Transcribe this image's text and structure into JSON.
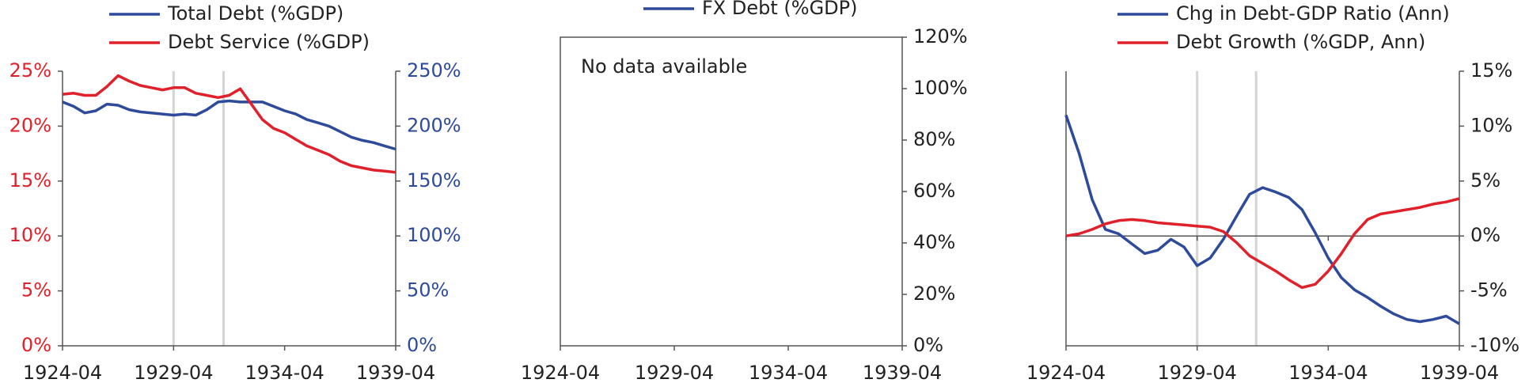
{
  "chart_data": [
    {
      "type": "line",
      "x": [
        "1924-04",
        "1924-10",
        "1925-04",
        "1925-10",
        "1926-04",
        "1926-10",
        "1927-04",
        "1927-10",
        "1928-04",
        "1928-10",
        "1929-04",
        "1929-10",
        "1930-04",
        "1930-10",
        "1931-04",
        "1931-10",
        "1932-04",
        "1932-10",
        "1933-04",
        "1933-10",
        "1934-04",
        "1934-10",
        "1935-04",
        "1935-10",
        "1936-04",
        "1936-10",
        "1937-04",
        "1937-10",
        "1938-04",
        "1938-10",
        "1939-04"
      ],
      "series": [
        {
          "name": "Total Debt (%GDP)",
          "color": "#2e4a9a",
          "axis": "y2",
          "values": [
            222,
            218,
            212,
            214,
            220,
            219,
            215,
            213,
            212,
            211,
            210,
            211,
            210,
            215,
            222,
            223,
            222,
            222,
            222,
            218,
            214,
            211,
            206,
            203,
            200,
            195,
            190,
            187,
            185,
            182,
            179
          ]
        },
        {
          "name": "Debt Service (%GDP)",
          "color": "#e0202a",
          "axis": "y",
          "values": [
            22.9,
            23.0,
            22.8,
            22.8,
            23.6,
            24.6,
            24.1,
            23.7,
            23.5,
            23.3,
            23.5,
            23.5,
            23.0,
            22.8,
            22.6,
            22.8,
            23.4,
            22.0,
            20.6,
            19.8,
            19.4,
            18.8,
            18.2,
            17.8,
            17.4,
            16.8,
            16.4,
            16.2,
            16.0,
            15.9,
            15.8
          ]
        }
      ],
      "xlim": [
        "1924-04",
        "1939-04"
      ],
      "xticks": [
        "1924-04",
        "1929-04",
        "1934-04",
        "1939-04"
      ],
      "ylim": [
        0,
        25
      ],
      "yticks": [
        {
          "value": 0,
          "label": "0%"
        },
        {
          "value": 5,
          "label": "5%"
        },
        {
          "value": 10,
          "label": "10%"
        },
        {
          "value": 15,
          "label": "15%"
        },
        {
          "value": 20,
          "label": "20%"
        },
        {
          "value": 25,
          "label": "25%"
        }
      ],
      "y2lim": [
        0,
        250
      ],
      "y2ticks": [
        {
          "value": 0,
          "label": "0%"
        },
        {
          "value": 50,
          "label": "50%"
        },
        {
          "value": 100,
          "label": "100%"
        },
        {
          "value": 150,
          "label": "150%"
        },
        {
          "value": 200,
          "label": "200%"
        },
        {
          "value": 250,
          "label": "250%"
        }
      ],
      "ytick_color": "#e0202a",
      "y2tick_color": "#2e4a9a",
      "vlines": [
        "1929-04",
        "1931-07"
      ],
      "vline_color": "#d4d4d4"
    },
    {
      "type": "line",
      "series": [
        {
          "name": "FX Debt (%GDP)",
          "color": "#2e4a9a",
          "axis": "y2"
        }
      ],
      "annotation": "No data available",
      "xlim": [
        "1924-04",
        "1939-04"
      ],
      "xticks": [
        "1924-04",
        "1929-04",
        "1934-04",
        "1939-04"
      ],
      "y2lim": [
        0,
        120
      ],
      "y2ticks": [
        {
          "value": 0,
          "label": "0%"
        },
        {
          "value": 20,
          "label": "20%"
        },
        {
          "value": 40,
          "label": "40%"
        },
        {
          "value": 60,
          "label": "60%"
        },
        {
          "value": 80,
          "label": "80%"
        },
        {
          "value": 100,
          "label": "100%"
        },
        {
          "value": 120,
          "label": "120%"
        }
      ],
      "y2tick_color": "#222222"
    },
    {
      "type": "line",
      "x": [
        "1924-04",
        "1924-10",
        "1925-04",
        "1925-10",
        "1926-04",
        "1926-10",
        "1927-04",
        "1927-10",
        "1928-04",
        "1928-10",
        "1929-04",
        "1929-10",
        "1930-04",
        "1930-10",
        "1931-04",
        "1931-10",
        "1932-04",
        "1932-10",
        "1933-04",
        "1933-10",
        "1934-04",
        "1934-10",
        "1935-04",
        "1935-10",
        "1936-04",
        "1936-10",
        "1937-04",
        "1937-10",
        "1938-04",
        "1938-10",
        "1939-04"
      ],
      "series": [
        {
          "name": "Chg in Debt-GDP Ratio (Ann)",
          "color": "#2e4a9a",
          "axis": "y2",
          "values": [
            11.0,
            7.5,
            3.3,
            0.6,
            0.2,
            -0.7,
            -1.6,
            -1.3,
            -0.3,
            -1.0,
            -2.7,
            -2.0,
            -0.3,
            1.8,
            3.8,
            4.4,
            4.0,
            3.5,
            2.4,
            0.3,
            -2.0,
            -3.8,
            -4.9,
            -5.6,
            -6.4,
            -7.1,
            -7.6,
            -7.8,
            -7.6,
            -7.3,
            -8.0
          ]
        },
        {
          "name": "Debt Growth (%GDP, Ann)",
          "color": "#e0202a",
          "axis": "y2",
          "values": [
            0.0,
            0.2,
            0.6,
            1.1,
            1.4,
            1.5,
            1.4,
            1.2,
            1.1,
            1.0,
            0.9,
            0.8,
            0.4,
            -0.6,
            -1.8,
            -2.5,
            -3.2,
            -4.0,
            -4.7,
            -4.4,
            -3.2,
            -1.6,
            0.2,
            1.5,
            2.0,
            2.2,
            2.4,
            2.6,
            2.9,
            3.1,
            3.4
          ]
        }
      ],
      "xlim": [
        "1924-04",
        "1939-04"
      ],
      "xticks": [
        "1924-04",
        "1929-04",
        "1934-04",
        "1939-04"
      ],
      "y2lim": [
        -10,
        15
      ],
      "y2ticks": [
        {
          "value": -10,
          "label": "-10%"
        },
        {
          "value": -5,
          "label": "-5%"
        },
        {
          "value": 0,
          "label": "0%"
        },
        {
          "value": 5,
          "label": "5%"
        },
        {
          "value": 10,
          "label": "10%"
        },
        {
          "value": 15,
          "label": "15%"
        }
      ],
      "y2tick_color": "#222222",
      "zero_line": true,
      "vlines": [
        "1929-04",
        "1931-07"
      ],
      "vline_color": "#d4d4d4"
    }
  ]
}
